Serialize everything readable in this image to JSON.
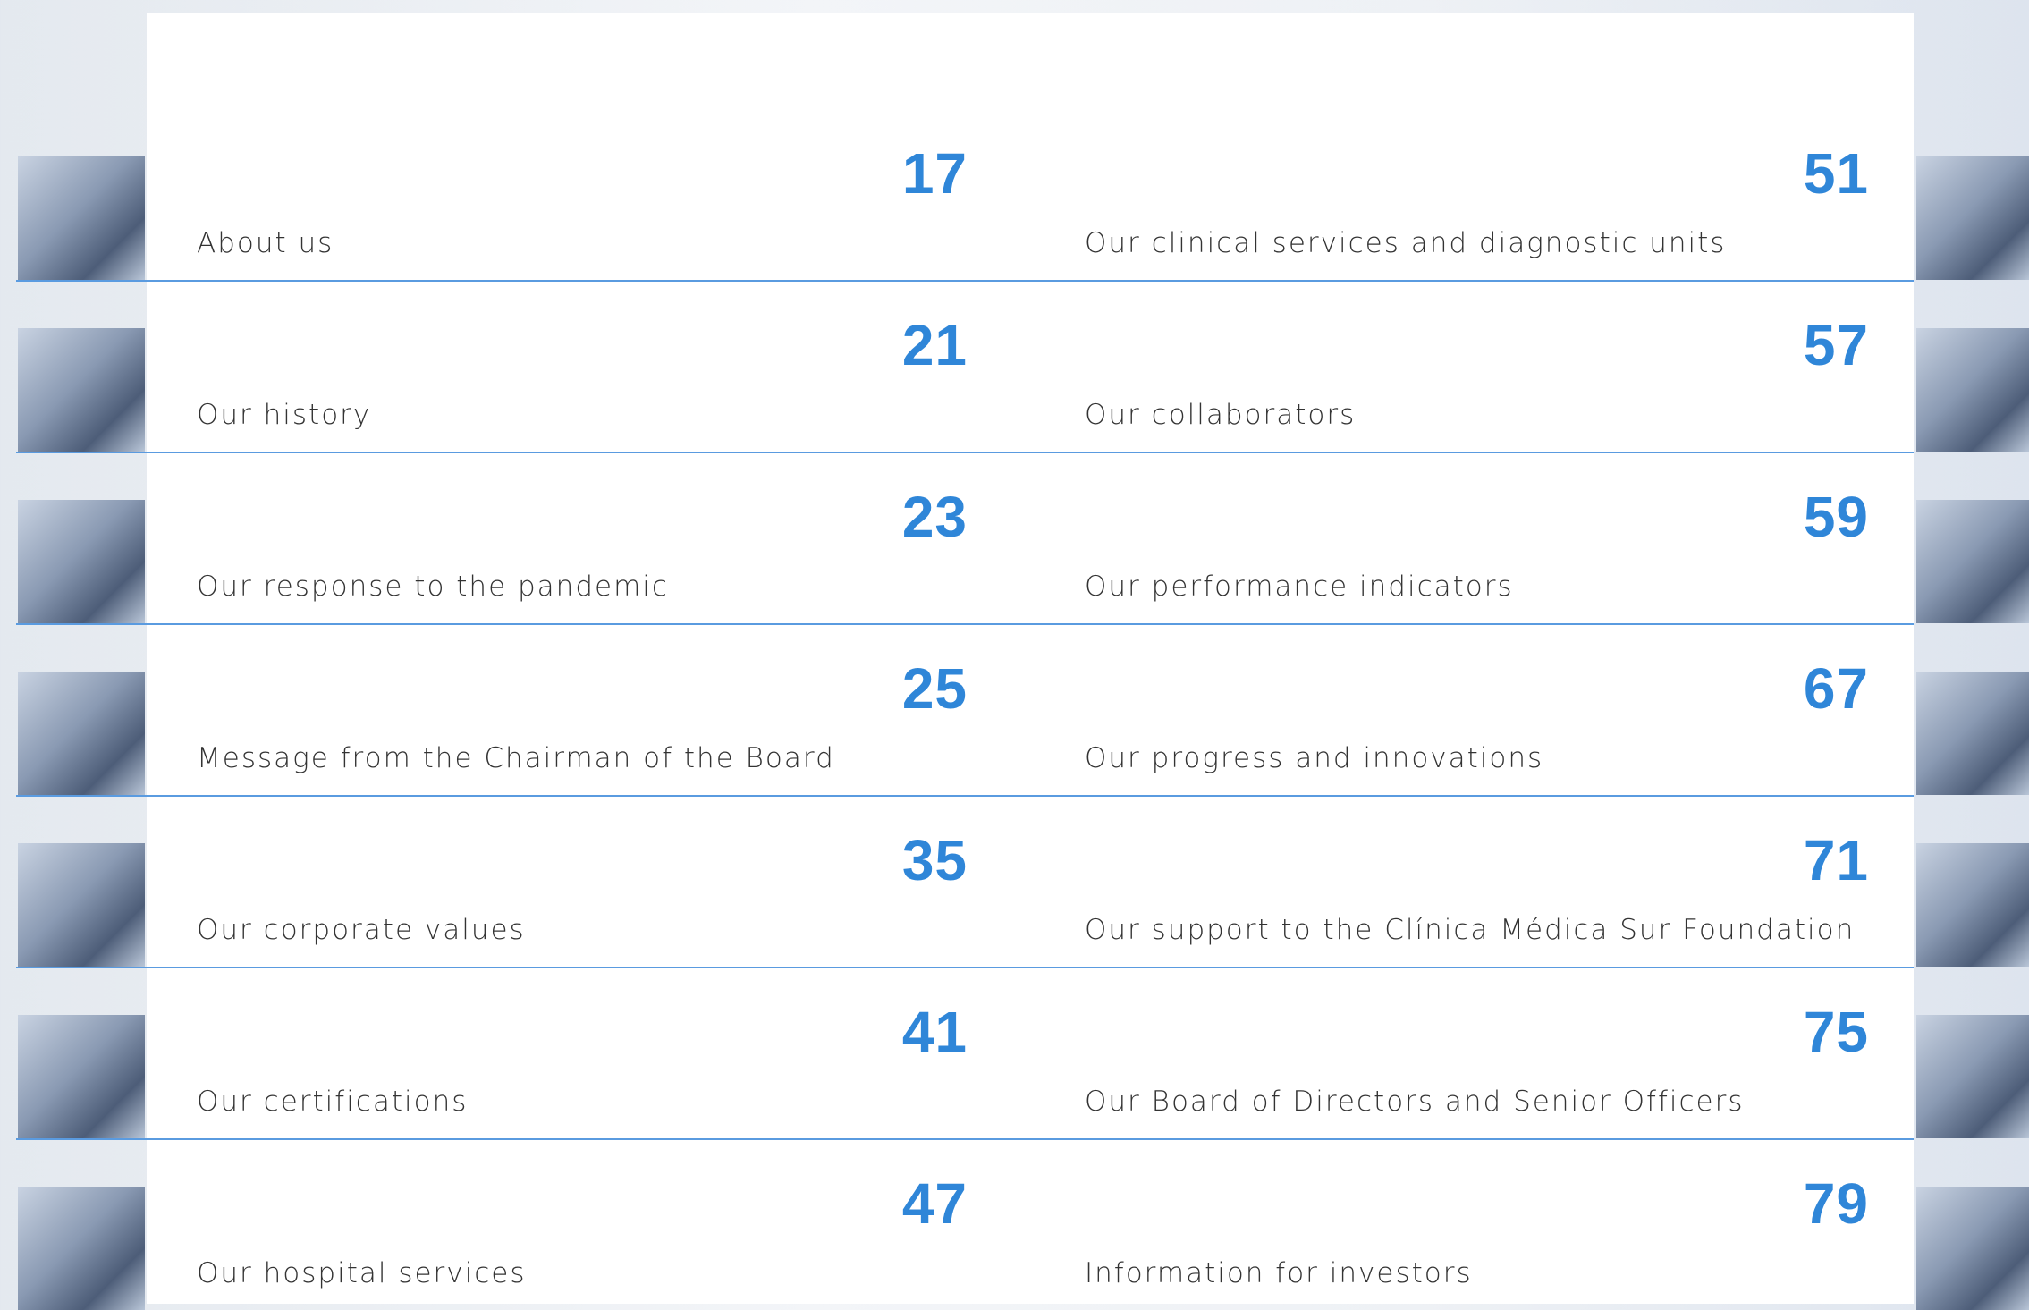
{
  "toc": {
    "left": [
      {
        "title": "About us",
        "page": 17
      },
      {
        "title": "Our history",
        "page": 21
      },
      {
        "title": "Our response to the pandemic",
        "page": 23
      },
      {
        "title": "Message from the Chairman of the Board",
        "page": 25
      },
      {
        "title": "Our corporate values",
        "page": 35
      },
      {
        "title": "Our certifications",
        "page": 41
      },
      {
        "title": "Our hospital services",
        "page": 47
      }
    ],
    "right": [
      {
        "title": "Our clinical services and diagnostic units",
        "page": 51
      },
      {
        "title": "Our collaborators",
        "page": 57
      },
      {
        "title": "Our performance indicators",
        "page": 59
      },
      {
        "title": "Our progress and innovations",
        "page": 67
      },
      {
        "title": "Our support to the Clínica Médica Sur Foundation",
        "page": 71
      },
      {
        "title": "Our Board of Directors and Senior Officers",
        "page": 75
      },
      {
        "title": "Information for investors",
        "page": 79
      }
    ]
  }
}
